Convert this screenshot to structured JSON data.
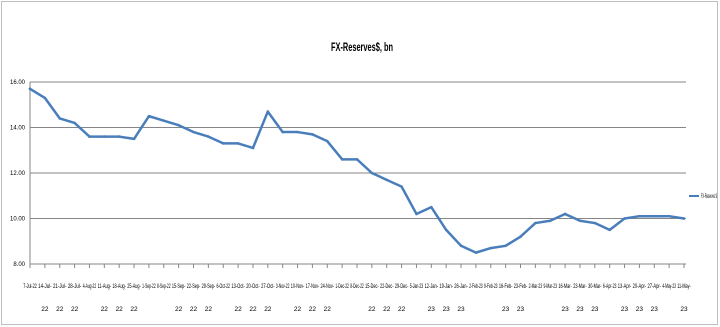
{
  "chart_data": {
    "type": "line",
    "title": "FX-Reserves$, bn",
    "xlabel": "",
    "ylabel": "",
    "categories": [
      "7-Jul-22",
      "14-Jul-22",
      "21-Jul-22",
      "28-Jul-22",
      "4-Aug-22",
      "11-Aug-22",
      "18-Aug-22",
      "25-Aug-22",
      "1-Sep-22",
      "8-Sep-22",
      "15-Sep-22",
      "22-Sep-22",
      "29-Sep-22",
      "6-Oct-22",
      "13-Oct-22",
      "20-Oct-22",
      "27-Oct-22",
      "3-Nov-22",
      "10-Nov-22",
      "17-Nov-22",
      "24-Nov-22",
      "1-Dec-22",
      "8-Dec-22",
      "15-Dec-22",
      "22-Dec-22",
      "29-Dec-22",
      "5-Jan-23",
      "12-Jan-23",
      "19-Jan-23",
      "26-Jan-23",
      "2-Feb-23",
      "9-Feb-23",
      "16-Feb-23",
      "23-Feb-23",
      "2-Mar-23",
      "9-Mar-23",
      "16-Mar-23",
      "23-Mar-23",
      "30-Mar-23",
      "6-Apr-23",
      "13-Apr-23",
      "20-Apr-23",
      "27-Apr-23",
      "4-May-23",
      "11-May-23"
    ],
    "series": [
      {
        "name": "FX-Reserves $",
        "values": [
          15.7,
          15.3,
          14.4,
          14.2,
          13.6,
          13.6,
          13.6,
          13.5,
          14.5,
          14.3,
          14.1,
          13.8,
          13.6,
          13.3,
          13.3,
          13.1,
          14.7,
          13.8,
          13.8,
          13.7,
          13.4,
          12.6,
          12.6,
          12.0,
          11.7,
          11.4,
          10.2,
          10.5,
          9.5,
          8.8,
          8.5,
          8.7,
          8.8,
          9.2,
          9.8,
          9.9,
          10.2,
          9.9,
          9.8,
          9.5,
          10.0,
          10.1,
          10.1,
          10.1,
          10.0
        ]
      }
    ],
    "ylim": [
      8,
      16
    ],
    "yticks": [
      8,
      10,
      12,
      14,
      16
    ],
    "ytick_labels": [
      "8.00",
      "10.00",
      "12.00",
      "14.00",
      "16.00"
    ],
    "grid": true,
    "legend": "right",
    "colors": {
      "series": "#4a7ebb",
      "grid": "#868686",
      "border": "#bfbfbf"
    }
  }
}
